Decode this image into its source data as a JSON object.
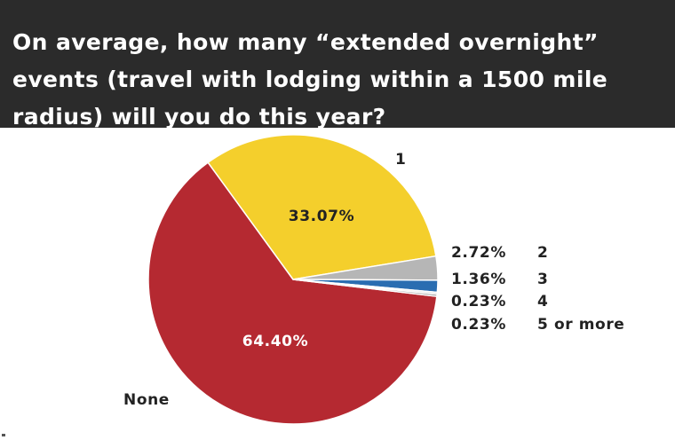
{
  "chart_data": {
    "type": "pie",
    "title": "On average, how many “extended overnight” events (travel with lodging within a 1500 mile radius) will you do this year?",
    "slices": [
      {
        "label": "None",
        "value": 64.4,
        "value_label": "64.40%",
        "color": "#b52931"
      },
      {
        "label": "1",
        "value": 33.07,
        "value_label": "33.07%",
        "color": "#f4cf2c"
      },
      {
        "label": "2",
        "value": 2.72,
        "value_label": "2.72%",
        "color": "#b6b6b6"
      },
      {
        "label": "3",
        "value": 1.36,
        "value_label": "1.36%",
        "color": "#2a6db1"
      },
      {
        "label": "4",
        "value": 0.23,
        "value_label": "0.23%",
        "color": "#dcdcdc"
      },
      {
        "label": "5 or more",
        "value": 0.23,
        "value_label": "0.23%",
        "color": "#8c8c8c"
      }
    ],
    "legend": "right",
    "colors": {
      "header_background": "#2b2b2b",
      "header_text": "#ffffff",
      "label_text": "#222222",
      "inner_label_text": "#ffffff"
    }
  }
}
